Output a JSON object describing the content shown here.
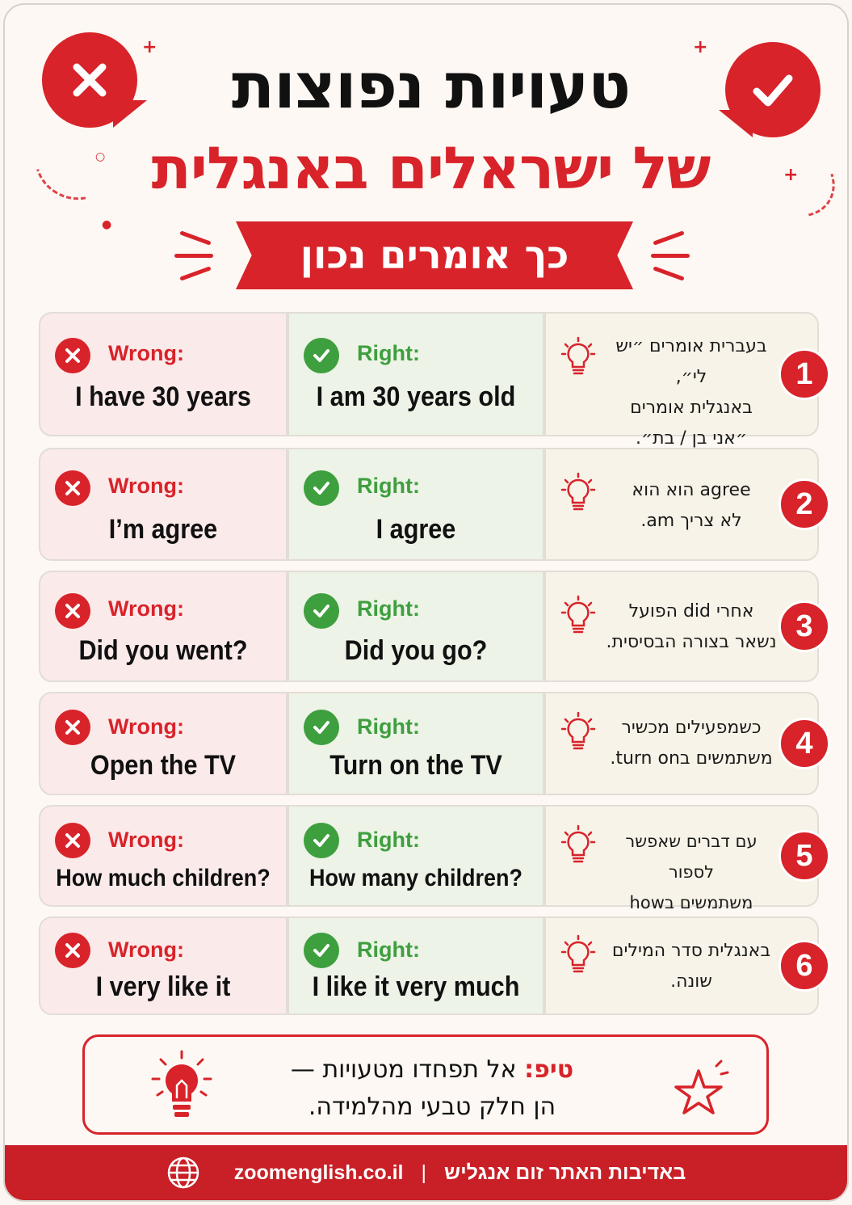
{
  "header": {
    "title_line1": "טעויות נפוצות",
    "title_line2": "של ישראלים באנגלית",
    "banner": "כך אומרים נכון"
  },
  "labels": {
    "wrong": "Wrong:",
    "right": "Right:"
  },
  "rows": [
    {
      "number": "1",
      "wrong": "I have 30 years",
      "right": "I am 30 years old",
      "note_lines": [
        "בעברית אומרים ״יש לי״,",
        "באנגלית אומרים",
        "״אני בן / בת״."
      ]
    },
    {
      "number": "2",
      "wrong": "I’m agree",
      "right": "I agree",
      "note_lines": [
        "agree הוא הוא",
        "לא צריך am."
      ]
    },
    {
      "number": "3",
      "wrong": "Did you went?",
      "right": "Did you go?",
      "note_lines": [
        "אחרי did הפועל",
        "נשאר בצורה הבסיסית."
      ]
    },
    {
      "number": "4",
      "wrong": "Open the TV",
      "right": "Turn on the TV",
      "note_lines": [
        "כשמפעילים מכשיר",
        "משתמשים בturn on."
      ]
    },
    {
      "number": "5",
      "wrong": "How much children?",
      "right": "How many children?",
      "note_lines": [
        "עם דברים שאפשר לספור",
        "משתמשים בhow many."
      ]
    },
    {
      "number": "6",
      "wrong": "I very like it",
      "right": "I like it very much",
      "note_lines": [
        "באנגלית סדר המילים",
        "שונה."
      ]
    }
  ],
  "tip": {
    "label": "טיפ:",
    "line1": "אל תפחדו מטעויות —",
    "line2": "הן חלק טבעי מהלמידה."
  },
  "footer": {
    "site": "zoomenglish.co.il",
    "separator": "|",
    "credit": "באדיבות האתר זום אנגליש"
  },
  "colors": {
    "accent": "#d8232a",
    "success": "#3e9f3e",
    "background": "#fdf8f3"
  }
}
